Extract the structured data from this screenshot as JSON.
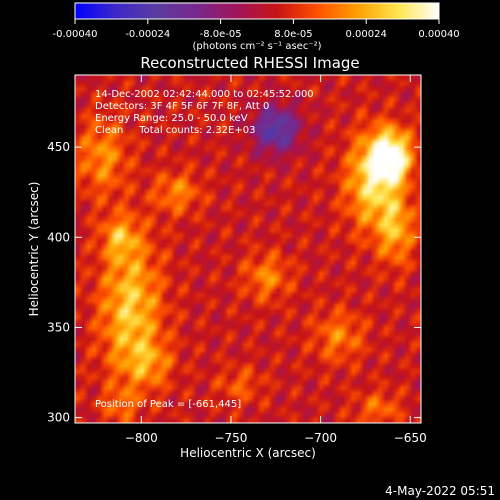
{
  "colorbar": {
    "min": -0.0004,
    "max": 0.0004,
    "tick_labels": [
      "-0.00040",
      "-0.00024",
      "-8.0e-05",
      "8.0e-05",
      "0.00024",
      "0.00040"
    ],
    "tick_values": [
      -0.0004,
      -0.00024,
      -8e-05,
      8e-05,
      0.00024,
      0.0004
    ],
    "units": "(photons cm⁻² s⁻¹ asec⁻²)"
  },
  "title": "Reconstructed RHESSI Image",
  "info_lines": [
    "14-Dec-2002 02:42:44.000 to 02:45:52.000",
    "Detectors: 3F 4F 5F 6F 7F 8F, Att 0",
    "Energy Range: 25.0 - 50.0 keV",
    "Clean     Total counts: 2.32E+03"
  ],
  "peak_label": "Position of Peak = [-661,445]",
  "timestamp": "4-May-2022 05:51",
  "colors": {
    "scale": [
      "#0000ff",
      "#3c28c8",
      "#5a3ca0",
      "#78288c",
      "#a0145a",
      "#c81414",
      "#ff5000",
      "#ffa000",
      "#ffe650",
      "#ffffff"
    ]
  },
  "chart_data": {
    "type": "heatmap",
    "title": "Reconstructed RHESSI Image",
    "xlabel": "Heliocentric X (arcsec)",
    "ylabel": "Heliocentric Y (arcsec)",
    "xlim": [
      -837,
      -644
    ],
    "ylim": [
      297,
      490
    ],
    "x_ticks": [
      -800,
      -750,
      -700,
      -650
    ],
    "y_ticks": [
      300,
      350,
      400,
      450
    ],
    "x_tick_labels": [
      "−800",
      "−750",
      "−700",
      "−650"
    ],
    "y_tick_labels": [
      "300",
      "350",
      "400",
      "450"
    ],
    "peak": [
      -661,
      445
    ],
    "zlim": [
      -0.0004,
      0.0004
    ],
    "sources": [
      {
        "x": -661,
        "y": 445,
        "sx": 8,
        "sy": 10,
        "amp": 0.0004
      },
      {
        "x": -672,
        "y": 430,
        "sx": 10,
        "sy": 18,
        "amp": 0.00025
      },
      {
        "x": -658,
        "y": 405,
        "sx": 7,
        "sy": 14,
        "amp": 0.0002
      },
      {
        "x": -806,
        "y": 360,
        "sx": 12,
        "sy": 28,
        "amp": 0.00024
      },
      {
        "x": -822,
        "y": 445,
        "sx": 10,
        "sy": 15,
        "amp": 0.00016
      },
      {
        "x": -780,
        "y": 425,
        "sx": 9,
        "sy": 8,
        "amp": 0.00015
      },
      {
        "x": -795,
        "y": 330,
        "sx": 9,
        "sy": 9,
        "amp": 0.00012
      },
      {
        "x": -690,
        "y": 345,
        "sx": 10,
        "sy": 10,
        "amp": 0.00014
      },
      {
        "x": -730,
        "y": 378,
        "sx": 9,
        "sy": 9,
        "amp": 0.00015
      },
      {
        "x": -668,
        "y": 305,
        "sx": 9,
        "sy": 7,
        "amp": 0.00012
      },
      {
        "x": -812,
        "y": 400,
        "sx": 7,
        "sy": 8,
        "amp": 0.00016
      },
      {
        "x": -745,
        "y": 318,
        "sx": 9,
        "sy": 7,
        "amp": 0.0001
      },
      {
        "x": -812,
        "y": 307,
        "sx": 7,
        "sy": 6,
        "amp": 0.0001
      }
    ],
    "negative_region": {
      "x": -725,
      "y": 460,
      "sx": 9,
      "sy": 9,
      "amp": -0.00028
    }
  }
}
